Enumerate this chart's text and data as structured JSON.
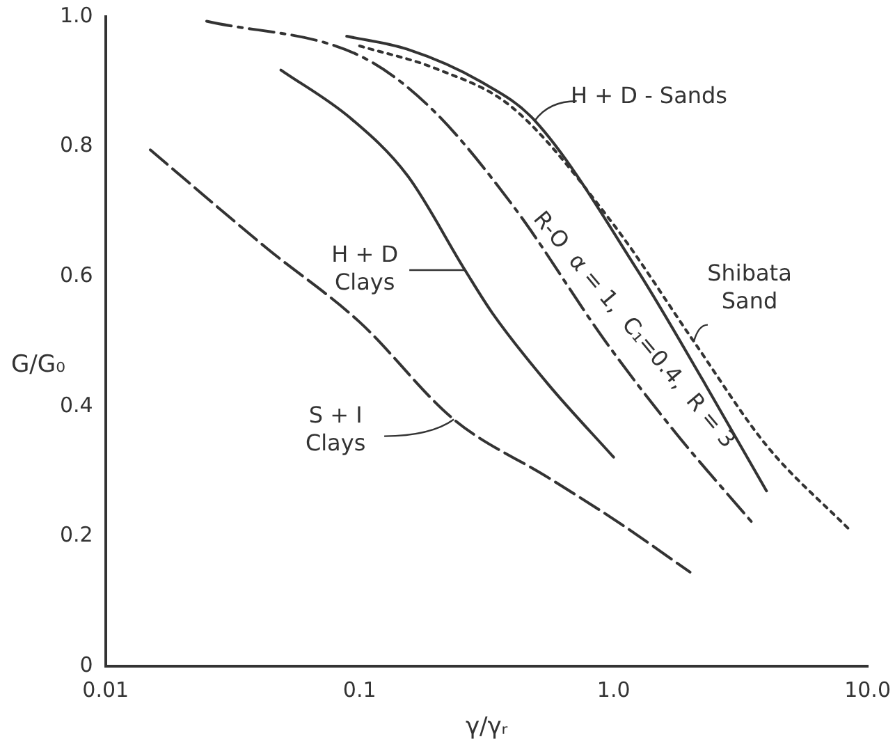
{
  "chart_data": {
    "type": "line",
    "xlabel": "γ/γᵣ",
    "ylabel": "G/G₀",
    "log": "x",
    "grid": false,
    "legend": false,
    "marker": "none",
    "xlim": [
      0.01,
      10
    ],
    "xticks": [
      0.01,
      0.1,
      {
        "value": 1,
        "label": "1.0"
      },
      {
        "value": 10,
        "label": "10.0"
      }
    ],
    "ylim": [
      0,
      1
    ],
    "yticks": [
      0,
      0.2,
      0.4,
      0.6,
      0.8,
      {
        "value": 1,
        "label": "1.0"
      }
    ],
    "series": [
      {
        "color": "#333333",
        "line_style": "dashed",
        "x": [
          0.015,
          0.043,
          0.1,
          0.235,
          0.556,
          1.06,
          2.0
        ],
        "values": [
          0.795,
          0.644,
          0.53,
          0.38,
          0.29,
          0.22,
          0.145
        ]
      },
      {
        "color": "#333333",
        "line_style": "solid",
        "x": [
          0.049,
          0.092,
          0.154,
          0.26,
          0.333,
          0.556,
          1.0
        ],
        "values": [
          0.918,
          0.844,
          0.756,
          0.61,
          0.544,
          0.433,
          0.322
        ]
      },
      {
        "color": "#333333",
        "line_style": "dashdot",
        "x": [
          0.025,
          0.1,
          0.19,
          0.4,
          0.93,
          1.75,
          3.5
        ],
        "values": [
          0.993,
          0.94,
          0.86,
          0.71,
          0.5,
          0.36,
          0.222
        ]
      },
      {
        "color": "#333333",
        "line_style": "solid",
        "x": [
          0.089,
          0.154,
          0.3,
          0.49,
          1.24,
          2.25,
          4.0
        ],
        "values": [
          0.97,
          0.95,
          0.9,
          0.84,
          0.61,
          0.44,
          0.27
        ]
      },
      {
        "color": "#333333",
        "line_style": "dotted",
        "x": [
          0.1,
          0.2,
          0.4,
          1.0,
          2.07,
          4.0,
          8.5
        ],
        "values": [
          0.955,
          0.92,
          0.86,
          0.68,
          0.5,
          0.34,
          0.21
        ]
      }
    ],
    "annotations": [
      {
        "text": "H + D - Sands",
        "x": 0.49,
        "y": 0.84
      },
      {
        "text": "Shibata\nSand",
        "x": 2.07,
        "y": 0.5
      },
      {
        "text": "H + D\nClays",
        "x": 0.26,
        "y": 0.61
      },
      {
        "text": "S + I\nClays",
        "x": 0.235,
        "y": 0.38
      },
      {
        "text": "R-O  α = 1,  C₁=0.4,  R = 3",
        "x": 0.93,
        "y": 0.5
      }
    ]
  }
}
